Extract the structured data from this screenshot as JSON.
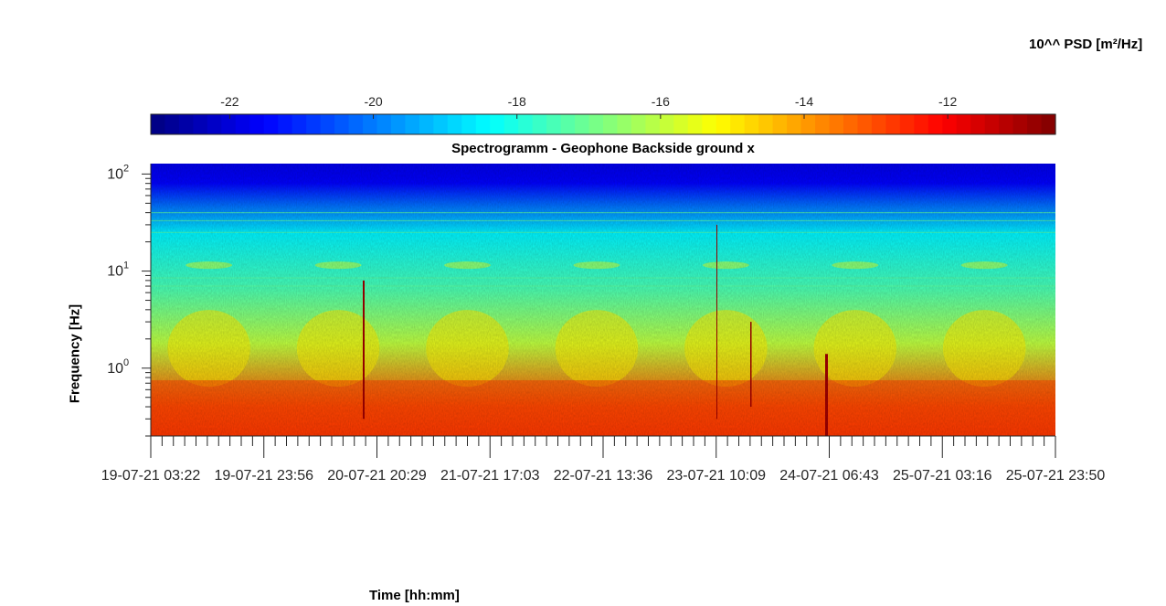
{
  "chart_data": {
    "type": "heatmap",
    "title": "Spectrogramm - Geophone Backside ground x",
    "xlabel": "Time [hh:mm]",
    "ylabel": "Frequency [Hz]",
    "y_scale": "log",
    "y_ticks": [
      {
        "value": 1,
        "base": "10",
        "exp": "0"
      },
      {
        "value": 10,
        "base": "10",
        "exp": "1"
      },
      {
        "value": 100,
        "base": "10",
        "exp": "2"
      }
    ],
    "x_ticks": [
      {
        "date": "19-07-21",
        "time": "03:22"
      },
      {
        "date": "19-07-21",
        "time": "23:56"
      },
      {
        "date": "20-07-21",
        "time": "20:29"
      },
      {
        "date": "21-07-21",
        "time": "17:03"
      },
      {
        "date": "22-07-21",
        "time": "13:36"
      },
      {
        "date": "23-07-21",
        "time": "10:09"
      },
      {
        "date": "24-07-21",
        "time": "06:43"
      },
      {
        "date": "25-07-21",
        "time": "03:16"
      },
      {
        "date": "25-07-21",
        "time": "23:50"
      }
    ],
    "colorbar": {
      "label": "10^^ PSD [m²/Hz]",
      "ticks": [
        "-22",
        "-20",
        "-18",
        "-16",
        "-14",
        "-12"
      ],
      "tick_values": [
        -22,
        -20,
        -18,
        -16,
        -14,
        -12
      ],
      "range": [
        -23.1,
        -10.5
      ],
      "colormap": "jet"
    },
    "description_bands": [
      {
        "freq_range_hz": [
          50,
          130
        ],
        "log10_psd": -21.5
      },
      {
        "freq_range_hz": [
          12,
          50
        ],
        "log10_psd": -18.5
      },
      {
        "freq_range_hz": [
          4,
          12
        ],
        "log10_psd": -17.5
      },
      {
        "freq_range_hz": [
          0.8,
          4
        ],
        "log10_psd": -16.0
      },
      {
        "freq_range_hz": [
          0.2,
          0.8
        ],
        "log10_psd": -13.0
      }
    ]
  }
}
